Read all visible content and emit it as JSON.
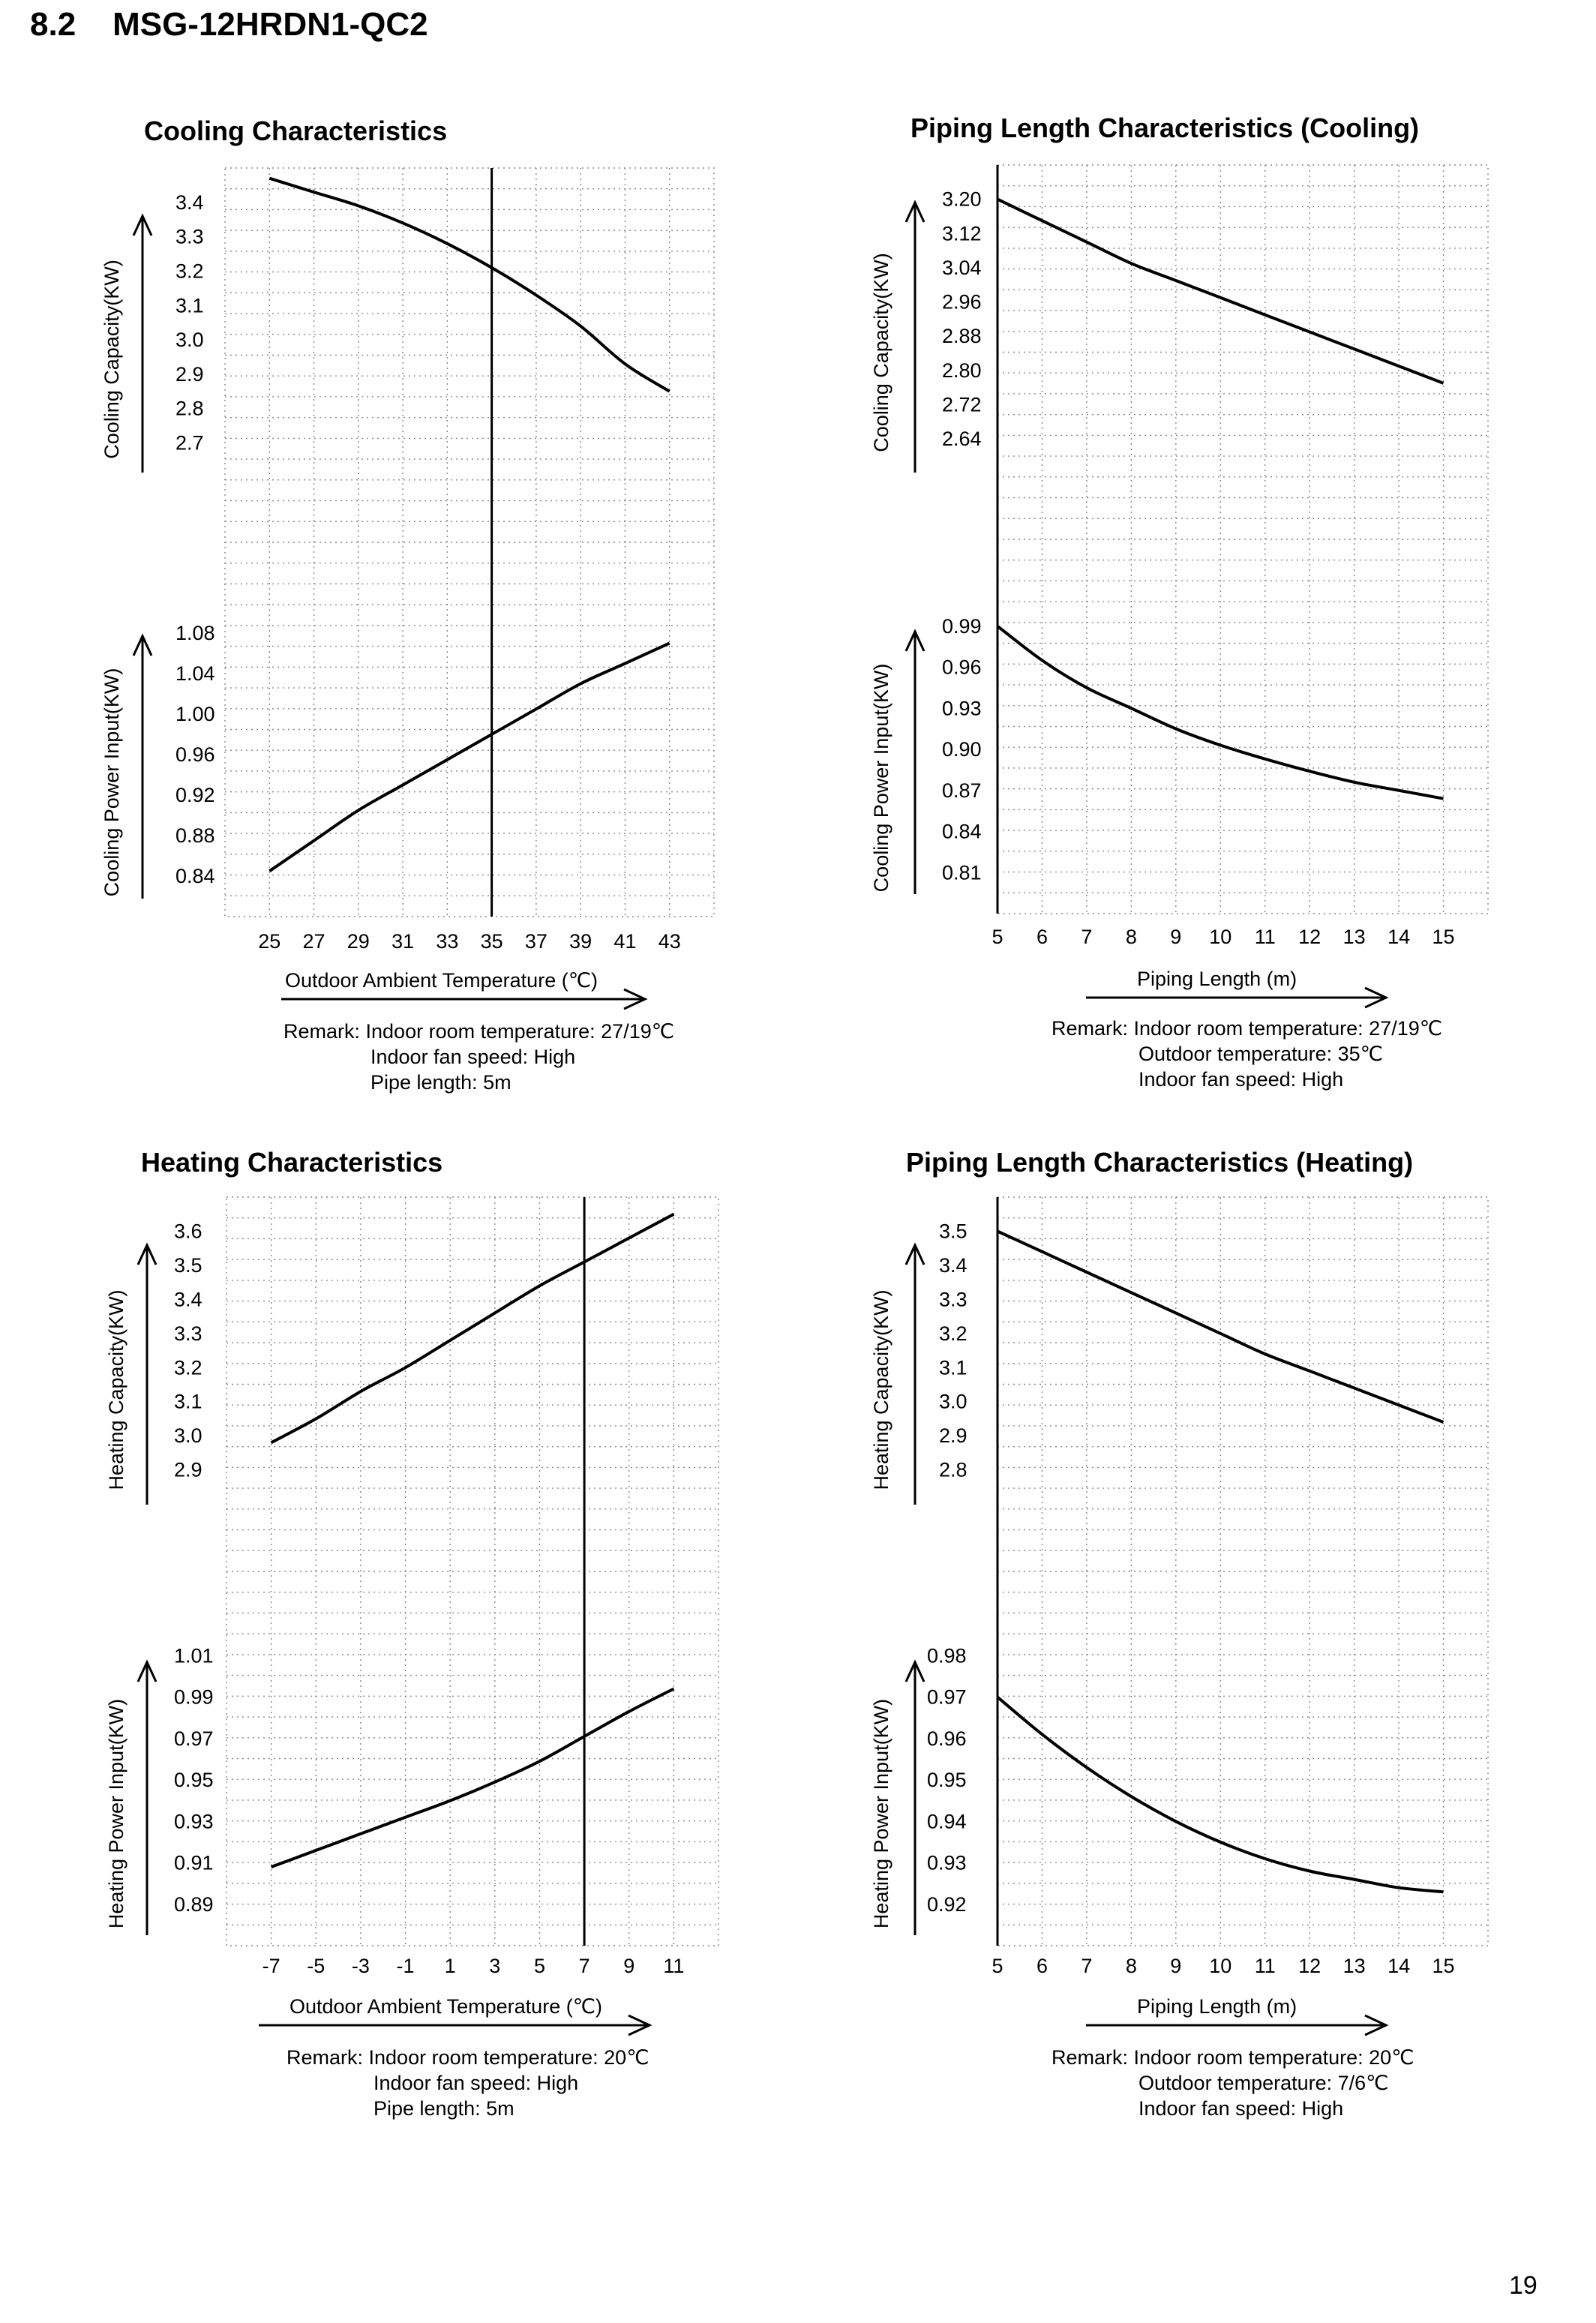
{
  "heading": "8.2    MSG-12HRDN1-QC2",
  "page_number": "19",
  "chart_data": [
    {
      "id": "cooling",
      "type": "line",
      "title": "Cooling Characteristics",
      "xlabel": "Outdoor Ambient Temperature (℃)",
      "x_ticks": [
        "25",
        "27",
        "29",
        "31",
        "33",
        "35",
        "37",
        "39",
        "41",
        "43"
      ],
      "xlim": [
        23,
        45
      ],
      "reference_x": 35,
      "remarks": [
        "Remark: Indoor room temperature: 27/19℃",
        "Indoor fan speed: High",
        "Pipe length: 5m"
      ],
      "panels": [
        {
          "ylabel": "Cooling Capacity(KW)",
          "y_ticks": [
            "3.4",
            "3.3",
            "3.2",
            "3.1",
            "3.0",
            "2.9",
            "2.8",
            "2.7"
          ],
          "ylim": [
            2.4,
            3.5
          ],
          "series": [
            {
              "x": [
                25,
                27,
                29,
                31,
                33,
                35,
                37,
                39,
                41,
                43
              ],
              "y": [
                3.47,
                3.43,
                3.39,
                3.34,
                3.28,
                3.21,
                3.13,
                3.04,
                2.93,
                2.85
              ]
            }
          ]
        },
        {
          "ylabel": "Cooling Power Input(KW)",
          "y_ticks": [
            "1.08",
            "1.04",
            "1.00",
            "0.96",
            "0.92",
            "0.88",
            "0.84"
          ],
          "ylim": [
            0.8,
            1.12
          ],
          "series": [
            {
              "x": [
                25,
                27,
                29,
                31,
                33,
                35,
                37,
                39,
                41,
                43
              ],
              "y": [
                0.845,
                0.875,
                0.905,
                0.93,
                0.955,
                0.98,
                1.005,
                1.03,
                1.05,
                1.07
              ]
            }
          ]
        }
      ]
    },
    {
      "id": "piping-cooling",
      "type": "line",
      "title": "Piping Length Characteristics (Cooling)",
      "xlabel": "Piping Length (m)",
      "x_ticks": [
        "5",
        "6",
        "7",
        "8",
        "9",
        "10",
        "11",
        "12",
        "13",
        "14",
        "15"
      ],
      "xlim": [
        5,
        16
      ],
      "reference_x": 5,
      "remarks": [
        "Remark: Indoor room temperature: 27/19℃",
        "Outdoor temperature: 35℃",
        "Indoor fan speed: High"
      ],
      "panels": [
        {
          "ylabel": "Cooling Capacity(KW)",
          "y_ticks": [
            "3.20",
            "3.12",
            "3.04",
            "2.96",
            "2.88",
            "2.80",
            "2.72",
            "2.64"
          ],
          "ylim": [
            2.4,
            3.28
          ],
          "series": [
            {
              "x": [
                5,
                6,
                7,
                8,
                9,
                10,
                11,
                12,
                13,
                14,
                15
              ],
              "y": [
                3.2,
                3.15,
                3.1,
                3.05,
                3.01,
                2.97,
                2.93,
                2.89,
                2.85,
                2.81,
                2.77
              ]
            }
          ]
        },
        {
          "ylabel": "Cooling Power Input(KW)",
          "y_ticks": [
            "0.99",
            "0.96",
            "0.93",
            "0.90",
            "0.87",
            "0.84",
            "0.81"
          ],
          "ylim": [
            0.78,
            1.02
          ],
          "series": [
            {
              "x": [
                5,
                6,
                7,
                8,
                9,
                10,
                11,
                12,
                13,
                14,
                15
              ],
              "y": [
                0.99,
                0.965,
                0.945,
                0.93,
                0.915,
                0.903,
                0.893,
                0.884,
                0.876,
                0.87,
                0.864
              ]
            }
          ]
        }
      ]
    },
    {
      "id": "heating",
      "type": "line",
      "title": "Heating Characteristics",
      "xlabel": "Outdoor Ambient Temperature (℃)",
      "x_ticks": [
        "-7",
        "-5",
        "-3",
        "-1",
        "1",
        "3",
        "5",
        "7",
        "9",
        "11"
      ],
      "xlim": [
        -9,
        13
      ],
      "reference_x": 7,
      "remarks": [
        "Remark: Indoor room temperature: 20℃",
        "Indoor fan speed: High",
        "Pipe length: 5m"
      ],
      "panels": [
        {
          "ylabel": "Heating Capacity(KW)",
          "y_ticks": [
            "3.6",
            "3.5",
            "3.4",
            "3.3",
            "3.2",
            "3.1",
            "3.0",
            "2.9"
          ],
          "ylim": [
            2.6,
            3.7
          ],
          "series": [
            {
              "x": [
                -7,
                -5,
                -3,
                -1,
                1,
                3,
                5,
                7,
                9,
                11
              ],
              "y": [
                2.98,
                3.05,
                3.13,
                3.2,
                3.28,
                3.36,
                3.44,
                3.51,
                3.58,
                3.65
              ]
            }
          ]
        },
        {
          "ylabel": "Heating Power Input(KW)",
          "y_ticks": [
            "1.01",
            "0.99",
            "0.97",
            "0.95",
            "0.93",
            "0.91",
            "0.89"
          ],
          "ylim": [
            0.87,
            1.03
          ],
          "series": [
            {
              "x": [
                -7,
                -5,
                -3,
                -1,
                1,
                3,
                5,
                7,
                9,
                11
              ],
              "y": [
                0.908,
                0.916,
                0.924,
                0.932,
                0.94,
                0.949,
                0.959,
                0.971,
                0.983,
                0.994
              ]
            }
          ]
        }
      ]
    },
    {
      "id": "piping-heating",
      "type": "line",
      "title": "Piping Length Characteristics (Heating)",
      "xlabel": "Piping Length (m)",
      "x_ticks": [
        "5",
        "6",
        "7",
        "8",
        "9",
        "10",
        "11",
        "12",
        "13",
        "14",
        "15"
      ],
      "xlim": [
        5,
        16
      ],
      "reference_x": 5,
      "remarks": [
        "Remark: Indoor room temperature: 20℃",
        "Outdoor temperature: 7/6℃",
        "Indoor fan speed: High"
      ],
      "panels": [
        {
          "ylabel": "Heating Capacity(KW)",
          "y_ticks": [
            "3.5",
            "3.4",
            "3.3",
            "3.2",
            "3.1",
            "3.0",
            "2.9",
            "2.8"
          ],
          "ylim": [
            2.5,
            3.6
          ],
          "series": [
            {
              "x": [
                5,
                6,
                7,
                8,
                9,
                10,
                11,
                12,
                13,
                14,
                15
              ],
              "y": [
                3.5,
                3.44,
                3.38,
                3.32,
                3.26,
                3.2,
                3.14,
                3.09,
                3.04,
                2.99,
                2.94
              ]
            }
          ]
        },
        {
          "ylabel": "Heating Power Input(KW)",
          "y_ticks": [
            "0.98",
            "0.97",
            "0.96",
            "0.95",
            "0.94",
            "0.93",
            "0.92"
          ],
          "ylim": [
            0.91,
            0.99
          ],
          "series": [
            {
              "x": [
                5,
                6,
                7,
                8,
                9,
                10,
                11,
                12,
                13,
                14,
                15
              ],
              "y": [
                0.97,
                0.961,
                0.953,
                0.946,
                0.94,
                0.935,
                0.931,
                0.928,
                0.926,
                0.924,
                0.923
              ]
            }
          ]
        }
      ]
    }
  ]
}
